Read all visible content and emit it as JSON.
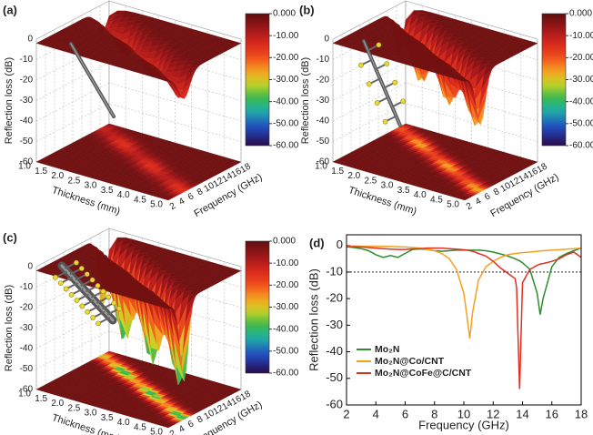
{
  "chart_data": [
    {
      "type": "surface3d",
      "title": "(a)",
      "zlabel": "Reflection loss (dB)",
      "xlabel": "Thickness (mm)",
      "ylabel": "Frequency (GHz)",
      "xlim": [
        1,
        5
      ],
      "xticks": [
        {
          "value": 1,
          "label": "1.0"
        },
        {
          "value": 1.5,
          "label": "1.5"
        },
        {
          "value": 2,
          "label": "2.0"
        },
        {
          "value": 2.5,
          "label": "2.5"
        },
        {
          "value": 3,
          "label": "3.0"
        },
        {
          "value": 3.5,
          "label": "3.5"
        },
        {
          "value": 4,
          "label": "4.0"
        },
        {
          "value": 4.5,
          "label": "4.5"
        },
        {
          "value": 5,
          "label": "5.0"
        }
      ],
      "ylim": [
        2,
        18
      ],
      "yticks": [
        2,
        4,
        6,
        8,
        10,
        12,
        14,
        16,
        18
      ],
      "zlim": [
        -60,
        0
      ],
      "zticks": [
        0,
        -10,
        -20,
        -30,
        -40,
        -50,
        -60
      ],
      "colorbar_ticks": [
        {
          "value": 0,
          "label": "0.000"
        },
        {
          "value": -10,
          "label": "-10.00"
        },
        {
          "value": -20,
          "label": "-20.00"
        },
        {
          "value": -30,
          "label": "-30.00"
        },
        {
          "value": -40,
          "label": "-40.00"
        },
        {
          "value": -50,
          "label": "-50.00"
        },
        {
          "value": -60,
          "label": "-60.00"
        }
      ]
    },
    {
      "type": "surface3d",
      "title": "(b)",
      "zlabel": "Reflection loss (dB)",
      "xlabel": "Thickness (mm)",
      "ylabel": "Frequency (GHz)",
      "xlim": [
        1,
        5
      ],
      "xticks": [
        {
          "value": 1,
          "label": "1.0"
        },
        {
          "value": 1.5,
          "label": "1.5"
        },
        {
          "value": 2,
          "label": "2.0"
        },
        {
          "value": 2.5,
          "label": "2.5"
        },
        {
          "value": 3,
          "label": "3.0"
        },
        {
          "value": 3.5,
          "label": "3.5"
        },
        {
          "value": 4,
          "label": "4.0"
        },
        {
          "value": 4.5,
          "label": "4.5"
        },
        {
          "value": 5,
          "label": "5.0"
        }
      ],
      "ylim": [
        2,
        18
      ],
      "yticks": [
        2,
        4,
        6,
        8,
        10,
        12,
        14,
        16,
        18
      ],
      "zlim": [
        -60,
        0
      ],
      "zticks": [
        0,
        -10,
        -20,
        -30,
        -40,
        -50,
        -60
      ],
      "colorbar_ticks": [
        {
          "value": 0,
          "label": "0.000"
        },
        {
          "value": -10,
          "label": "-10.00"
        },
        {
          "value": -20,
          "label": "-20.00"
        },
        {
          "value": -30,
          "label": "-30.00"
        },
        {
          "value": -40,
          "label": "-40.00"
        },
        {
          "value": -50,
          "label": "-50.00"
        },
        {
          "value": -60,
          "label": "-60.00"
        }
      ]
    },
    {
      "type": "surface3d",
      "title": "(c)",
      "zlabel": "Reflection loss (dB)",
      "xlabel": "Thickness (mm)",
      "ylabel": "Frequency (GHz)",
      "xlim": [
        1,
        5
      ],
      "xticks": [
        {
          "value": 1,
          "label": "1.0"
        },
        {
          "value": 1.5,
          "label": "1.5"
        },
        {
          "value": 2,
          "label": "2.0"
        },
        {
          "value": 2.5,
          "label": "2.5"
        },
        {
          "value": 3,
          "label": "3.0"
        },
        {
          "value": 3.5,
          "label": "3.5"
        },
        {
          "value": 4,
          "label": "4.0"
        },
        {
          "value": 4.5,
          "label": "4.5"
        },
        {
          "value": 5,
          "label": "5.0"
        }
      ],
      "ylim": [
        2,
        18
      ],
      "yticks": [
        2,
        4,
        6,
        8,
        10,
        12,
        14,
        16,
        18
      ],
      "zlim": [
        -60,
        0
      ],
      "zticks": [
        0,
        -10,
        -20,
        -30,
        -40,
        -50,
        -60
      ],
      "colorbar_ticks": [
        {
          "value": 0,
          "label": "0.000"
        },
        {
          "value": -10,
          "label": "-10.00"
        },
        {
          "value": -20,
          "label": "-20.00"
        },
        {
          "value": -30,
          "label": "-30.00"
        },
        {
          "value": -40,
          "label": "-40.00"
        },
        {
          "value": -50,
          "label": "-50.00"
        },
        {
          "value": -60,
          "label": "-60.00"
        }
      ]
    },
    {
      "type": "line",
      "title": "(d)",
      "xlabel": "Frequency (GHz)",
      "ylabel": "Reflection loss (dB)",
      "x": [
        2,
        2.5,
        3,
        3.5,
        4,
        4.5,
        5,
        5.5,
        6,
        6.5,
        7,
        7.5,
        8,
        8.5,
        9,
        9.5,
        10,
        10.2,
        10.4,
        10.6,
        11,
        11.5,
        12,
        12.5,
        13,
        13.5,
        13.6,
        13.8,
        14,
        14.5,
        15,
        15.2,
        15.4,
        16,
        16.5,
        17,
        17.5,
        18
      ],
      "series": [
        {
          "name": "Mo₂N",
          "color": "#2e8b2e",
          "values": [
            -0.5,
            -0.8,
            -1.2,
            -2,
            -3.5,
            -4.5,
            -3.8,
            -4.5,
            -3,
            -1.5,
            -1.3,
            -1.5,
            -2,
            -2.2,
            -2,
            -1.8,
            -1.8,
            -1.8,
            -1.8,
            -1.8,
            -1.8,
            -2,
            -2.5,
            -3.2,
            -4,
            -5,
            -5.3,
            -5.8,
            -6.5,
            -9,
            -18,
            -26,
            -20,
            -8,
            -4.5,
            -3,
            -2,
            -1
          ]
        },
        {
          "name": "Mo₂N@Co/CNT",
          "color": "#f5a020",
          "values": [
            -0.2,
            -0.2,
            -0.3,
            -0.3,
            -0.3,
            -0.3,
            -0.4,
            -0.5,
            -0.6,
            -0.8,
            -1,
            -1.5,
            -2,
            -3,
            -5,
            -9,
            -18,
            -26,
            -35,
            -25,
            -13,
            -8,
            -6,
            -4.5,
            -3.5,
            -3,
            -3,
            -2.8,
            -2.7,
            -2.5,
            -2.2,
            -2.1,
            -2,
            -1.8,
            -1.6,
            -1.4,
            -1.2,
            -1
          ]
        },
        {
          "name": "Mo₂N@CoFe@C/CNT",
          "color": "#e03020",
          "values": [
            -0.5,
            -0.5,
            -0.6,
            -0.8,
            -1,
            -1.2,
            -1.4,
            -1.5,
            -1.5,
            -1.3,
            -1.2,
            -1,
            -1,
            -1,
            -1.2,
            -1.4,
            -1.6,
            -1.8,
            -2,
            -2.2,
            -3,
            -4,
            -6,
            -8.5,
            -10.5,
            -12.5,
            -16,
            -54,
            -14,
            -9,
            -7.5,
            -7,
            -6.8,
            -6,
            -5,
            -3.5,
            -2.5,
            -4.5
          ]
        }
      ],
      "xlim": [
        2,
        18
      ],
      "xticks": [
        2,
        4,
        6,
        8,
        10,
        12,
        14,
        16,
        18
      ],
      "ylim": [
        -60,
        4
      ],
      "yticks": [
        0,
        -10,
        -20,
        -30,
        -40,
        -50,
        -60
      ],
      "reference_line": -10,
      "legend": "lower left"
    }
  ]
}
